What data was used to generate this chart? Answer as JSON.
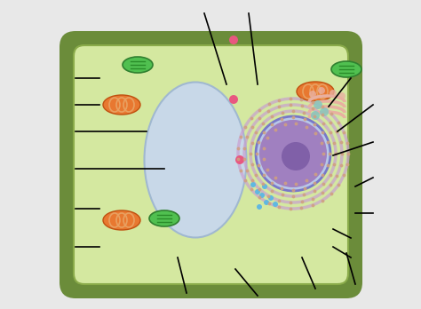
{
  "bg_color": "#e8e8e8",
  "cell_wall_color": "#6b8c3a",
  "cell_wall_inner_color": "#8aab4a",
  "cytoplasm_color": "#d4e8a0",
  "vacuole_color": "#c8d8e8",
  "vacuole_border": "#a0b8d0",
  "nucleus_outer_color": "#7878c8",
  "nucleus_inner_color": "#a080c0",
  "nucleolus_color": "#8060a8",
  "er_color": "#c8a0d0",
  "er_dot_color": "#d0a080",
  "golgi_color": "#e8b0a0",
  "mito_outer": "#e87830",
  "mito_inner": "#e8a060",
  "chloro_color": "#50c050",
  "chloro_border": "#308030",
  "vesicle_color": "#80c8c0",
  "ribosome_color": "#60b8e0",
  "pink_dot": "#e85880",
  "line_color": "#000000",
  "figsize": [
    4.74,
    3.48
  ],
  "dpi": 100
}
